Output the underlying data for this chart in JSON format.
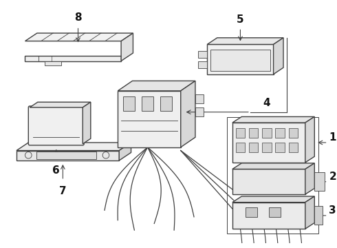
{
  "bg_color": "#ffffff",
  "line_color": "#404040",
  "label_color": "#111111",
  "figsize": [
    4.9,
    3.6
  ],
  "dpi": 100,
  "label_fontsize": 10,
  "lw_main": 1.0,
  "lw_thin": 0.6
}
